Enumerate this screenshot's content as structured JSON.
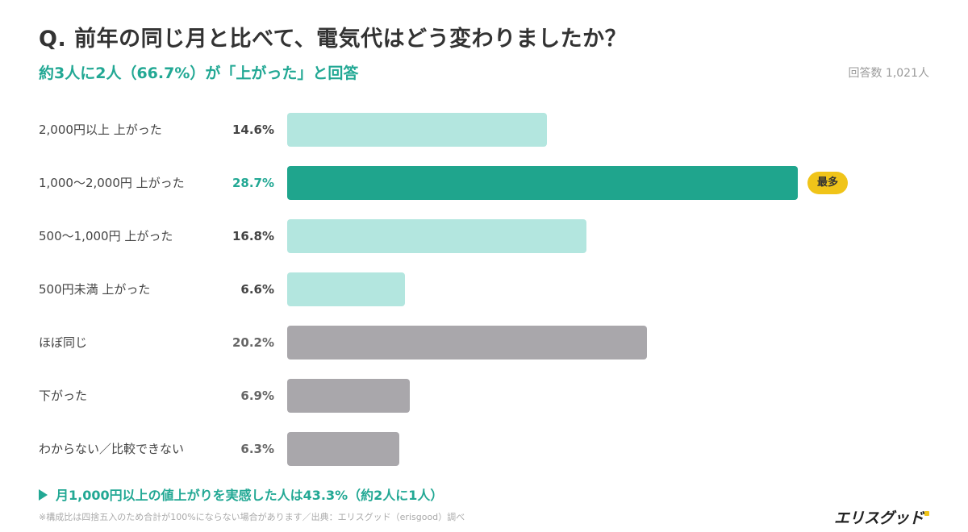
{
  "header": {
    "title": "Q. 前年の同じ月と比べて、電気代はどう変わりましたか？",
    "subtitle": "約3人に2人（66.7%）が「上がった」と回答",
    "respondents": "回答数 1,021人"
  },
  "badge": {
    "label": "最多"
  },
  "colors": {
    "highlight": "#1fa58d",
    "highlight_text": "#22a894",
    "increase": "#b3e6df",
    "other": "#a9a7ab",
    "value_text": "#444444",
    "other_value_text": "#666666",
    "badge": "#f0c419"
  },
  "chart_data": {
    "type": "bar",
    "orientation": "horizontal",
    "categories": [
      "2,000円以上 上がった",
      "1,000〜2,000円 上がった",
      "500〜1,000円 上がった",
      "500円未満 上がった",
      "ほぼ同じ",
      "下がった",
      "わからない／比較できない"
    ],
    "values": [
      14.6,
      28.7,
      16.8,
      6.6,
      20.2,
      6.9,
      6.3
    ],
    "value_labels": [
      "14.6%",
      "28.7%",
      "16.8%",
      "6.6%",
      "20.2%",
      "6.9%",
      "6.3%"
    ],
    "groups": [
      "increase",
      "increase",
      "increase",
      "increase",
      "other",
      "other",
      "other"
    ],
    "highlight_index": 1,
    "xlim": [
      0,
      30
    ],
    "grid": false,
    "legend": "none"
  },
  "footer": {
    "summary": "月1,000円以上の値上がりを実感した人は43.3%（約2人に1人）",
    "note": "※構成比は四捨五入のため合計が100%にならない場合があります／出典：エリスグッド（erisgood）調べ",
    "logo": "エリスグッド"
  }
}
